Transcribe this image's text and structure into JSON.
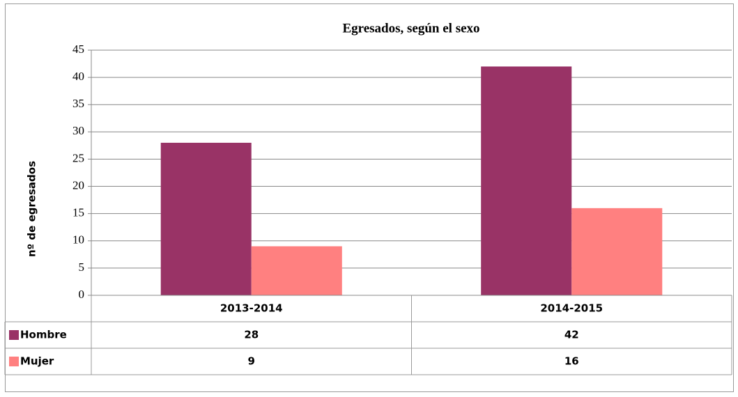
{
  "chart_data": {
    "type": "bar",
    "title": "Egresados, según el sexo",
    "y_label": "nº de egresados",
    "categories": [
      "2013-2014",
      "2014-2015"
    ],
    "series": [
      {
        "name": "Hombre",
        "color": "#993366",
        "values": [
          28,
          42
        ]
      },
      {
        "name": "Mujer",
        "color": "#ff8080",
        "values": [
          9,
          16
        ]
      }
    ],
    "ylim": [
      0,
      45
    ],
    "yticks": [
      0,
      5,
      10,
      15,
      20,
      25,
      30,
      35,
      40,
      45
    ],
    "grid": true,
    "data_table": true
  }
}
